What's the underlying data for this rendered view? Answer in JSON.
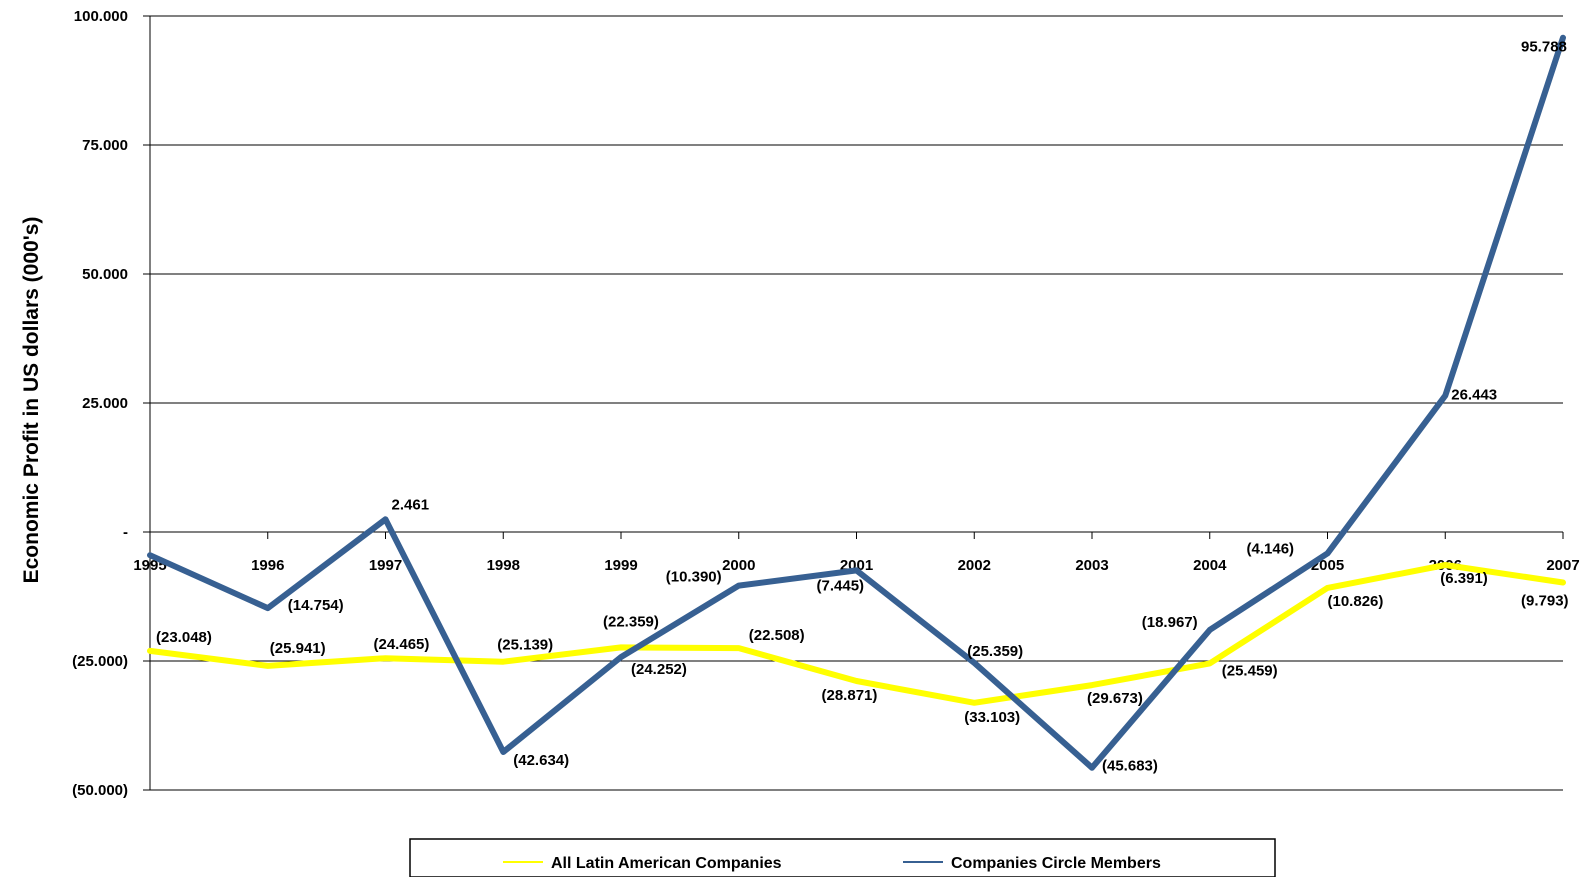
{
  "chart_data": {
    "type": "line",
    "ylabel": "Economic Profit in US dollars (000's)",
    "ylim": [
      -50000,
      100000
    ],
    "yticks": [
      100000,
      75000,
      50000,
      25000,
      0,
      -25000,
      -50000
    ],
    "ytick_labels": [
      "100.000",
      "75.000",
      "50.000",
      "25.000",
      "-",
      "(25.000)",
      "(50.000)"
    ],
    "categories": [
      "1995",
      "1996",
      "1997",
      "1998",
      "1999",
      "2000",
      "2001",
      "2002",
      "2003",
      "2004",
      "2005",
      "2006",
      "2007"
    ],
    "grid": true,
    "legend_position": "bottom",
    "series": [
      {
        "name": "All Latin American Companies",
        "color": "#FFFF00",
        "values": [
          -23048,
          -25941,
          -24465,
          -25139,
          -22359,
          -22508,
          -28871,
          -33103,
          -29673,
          -25459,
          -10826,
          -6391,
          -9793
        ],
        "labels": [
          "(23.048)",
          "(25.941)",
          "(24.465)",
          "(25.139)",
          "(22.359)",
          "(22.508)",
          "(28.871)",
          "(33.103)",
          "(29.673)",
          "(25.459)",
          "(10.826)",
          "(6.391)",
          "(9.793)"
        ]
      },
      {
        "name": "Companies Circle Members",
        "color": "#376092",
        "values": [
          -4500,
          -14754,
          2461,
          -42634,
          -24252,
          -10390,
          -7445,
          -25359,
          -45683,
          -18967,
          -4146,
          26443,
          95788
        ],
        "labels": [
          "",
          "(14.754)",
          "2.461",
          "(42.634)",
          "(24.252)",
          "(10.390)",
          "(7.445)",
          "(25.359)",
          "(45.683)",
          "(18.967)",
          "(4.146)",
          "26.443",
          "95.788"
        ]
      }
    ]
  }
}
